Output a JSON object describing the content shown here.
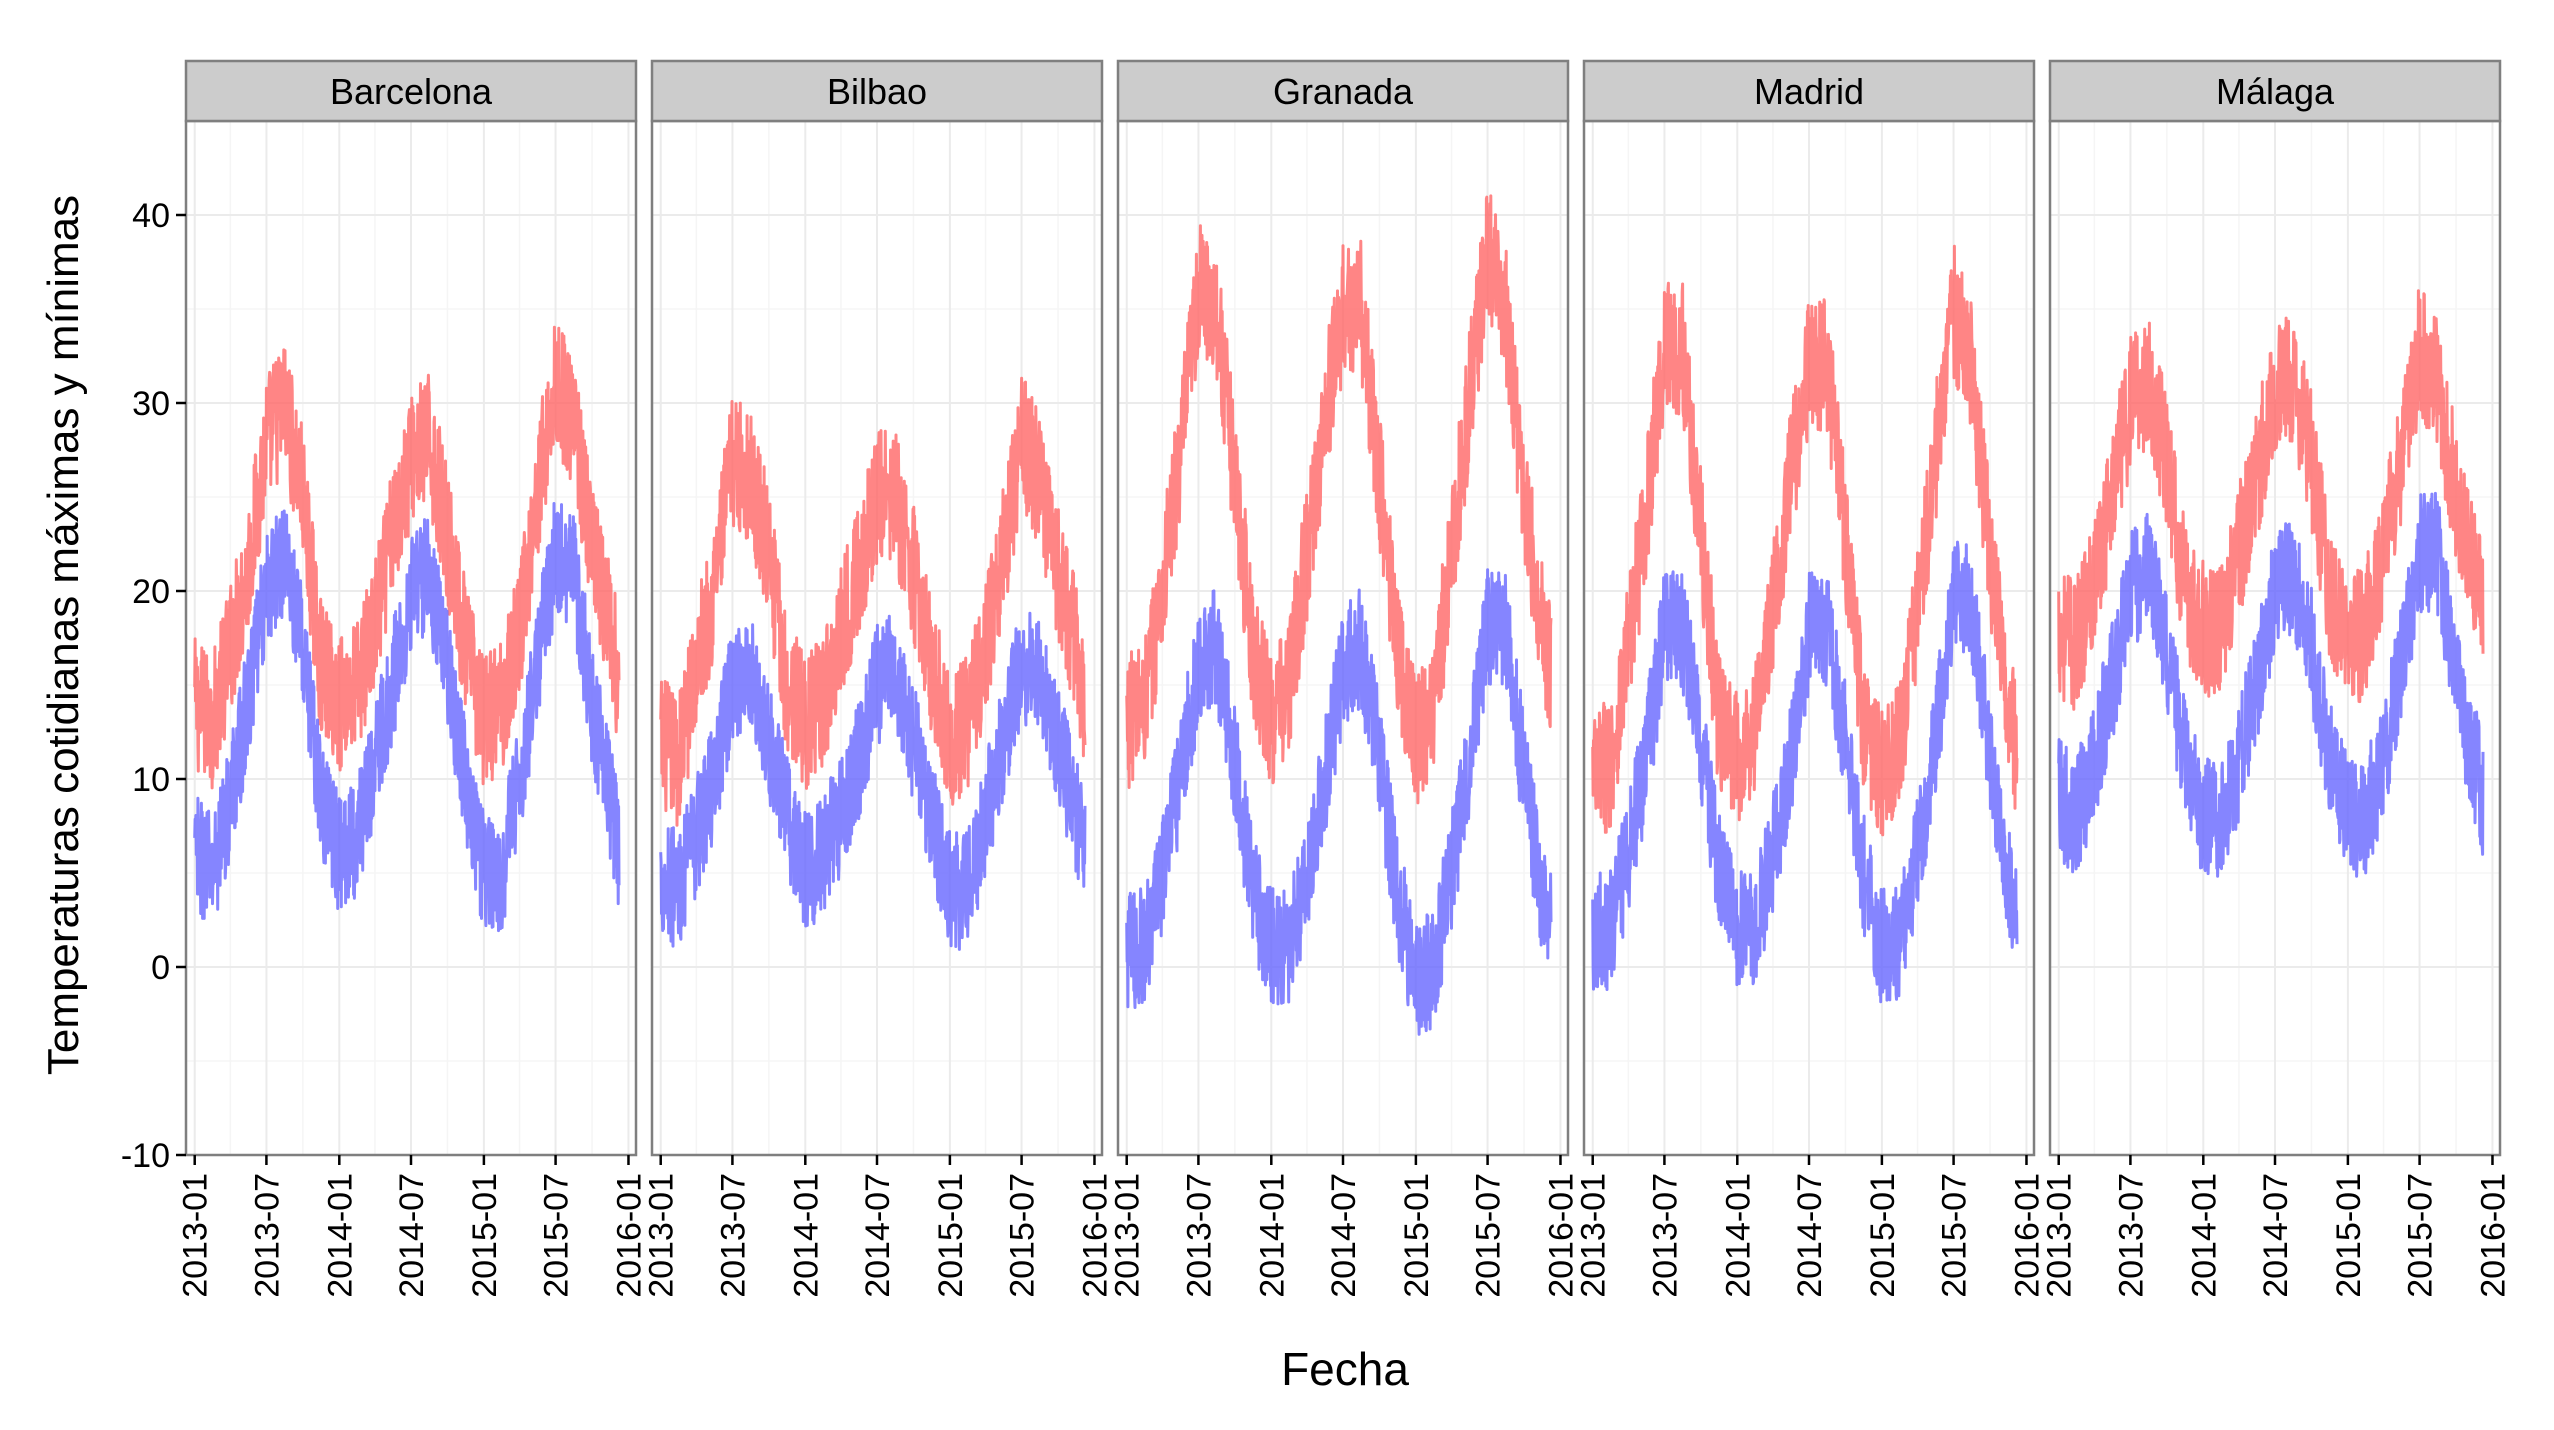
{
  "chart_data": {
    "type": "line",
    "xlabel": "Fecha",
    "ylabel": "Temperaturas cotidianas máximas y mínimas",
    "ylim": [
      -10,
      45
    ],
    "y_ticks": [
      -10,
      0,
      10,
      20,
      30,
      40
    ],
    "x_ticks": [
      "2013-01",
      "2013-07",
      "2014-01",
      "2014-07",
      "2015-01",
      "2015-07",
      "2016-01"
    ],
    "x_tick_dates": [
      "2013-01-01",
      "2013-07-01",
      "2014-01-01",
      "2014-07-01",
      "2015-01-01",
      "2015-07-01",
      "2016-01-01"
    ],
    "xlim": [
      "2012-12-10",
      "2016-01-20"
    ],
    "grid": true,
    "legend": "none",
    "colors": {
      "max": "#FF6666",
      "min": "#6666FF",
      "strip_bg": "#CCCCCC",
      "panel_border": "#7F7F7F",
      "grid_major": "#EBEBEB",
      "grid_minor": "#F5F5F5"
    },
    "panels": [
      {
        "name": "Barcelona",
        "dates": [
          "2013-01-01",
          "2013-02-15",
          "2013-04-01",
          "2013-05-15",
          "2013-07-01",
          "2013-08-15",
          "2013-10-01",
          "2013-11-15",
          "2014-01-01",
          "2014-02-15",
          "2014-04-01",
          "2014-05-15",
          "2014-07-01",
          "2014-08-15",
          "2014-10-01",
          "2014-11-15",
          "2015-01-01",
          "2015-02-15",
          "2015-04-01",
          "2015-05-15",
          "2015-07-01",
          "2015-08-15",
          "2015-10-01",
          "2015-11-15",
          "2015-12-08"
        ],
        "series": [
          {
            "name": "max",
            "values": [
              14,
              13,
              17,
              21,
              28,
              30,
              25,
              16,
              14,
              15,
              18,
              23,
              27,
              28,
              23,
              17,
              13,
              14,
              18,
              25,
              31,
              29,
              22,
              18,
              15
            ]
          },
          {
            "name": "min",
            "values": [
              6,
              5,
              9,
              14,
              20,
              22,
              17,
              9,
              6,
              7,
              11,
              15,
              20,
              21,
              16,
              10,
              5,
              5,
              10,
              16,
              22,
              21,
              14,
              9,
              6
            ]
          }
        ]
      },
      {
        "name": "Bilbao",
        "dates": [
          "2013-01-01",
          "2013-02-15",
          "2013-04-01",
          "2013-05-15",
          "2013-07-01",
          "2013-08-15",
          "2013-10-01",
          "2013-11-15",
          "2014-01-01",
          "2014-02-15",
          "2014-04-01",
          "2014-05-15",
          "2014-07-01",
          "2014-08-15",
          "2014-10-01",
          "2014-11-15",
          "2015-01-01",
          "2015-02-15",
          "2015-04-01",
          "2015-05-15",
          "2015-07-01",
          "2015-08-15",
          "2015-10-01",
          "2015-11-15",
          "2015-12-08"
        ],
        "series": [
          {
            "name": "max",
            "values": [
              12,
              11,
              16,
              20,
              27,
              26,
              22,
              15,
              13,
              14,
              18,
              21,
              25,
              25,
              21,
              16,
              12,
              13,
              17,
              22,
              28,
              26,
              21,
              17,
              14
            ]
          },
          {
            "name": "min",
            "values": [
              5,
              4,
              7,
              10,
              15,
              16,
              12,
              8,
              5,
              6,
              8,
              11,
              15,
              16,
              12,
              8,
              4,
              4,
              8,
              12,
              16,
              16,
              12,
              8,
              6
            ]
          }
        ]
      },
      {
        "name": "Granada",
        "dates": [
          "2013-01-01",
          "2013-02-15",
          "2013-04-01",
          "2013-05-15",
          "2013-07-01",
          "2013-08-15",
          "2013-10-01",
          "2013-11-15",
          "2014-01-01",
          "2014-02-15",
          "2014-04-01",
          "2014-05-15",
          "2014-07-01",
          "2014-08-15",
          "2014-10-01",
          "2014-11-15",
          "2015-01-01",
          "2015-02-15",
          "2015-04-01",
          "2015-05-15",
          "2015-07-01",
          "2015-08-15",
          "2015-10-01",
          "2015-11-15",
          "2015-12-08"
        ],
        "series": [
          {
            "name": "max",
            "values": [
              13,
              14,
              20,
              27,
              36,
              35,
              26,
              17,
              13,
              15,
              22,
              29,
              35,
              35,
              26,
              17,
              12,
              14,
              22,
              30,
              38,
              35,
              25,
              18,
              16
            ]
          },
          {
            "name": "min",
            "values": [
              1,
              1,
              5,
              10,
              16,
              17,
              11,
              4,
              1,
              1,
              5,
              10,
              16,
              17,
              11,
              4,
              -1,
              0,
              5,
              11,
              18,
              18,
              10,
              4,
              2
            ]
          }
        ]
      },
      {
        "name": "Madrid",
        "dates": [
          "2013-01-01",
          "2013-02-15",
          "2013-04-01",
          "2013-05-15",
          "2013-07-01",
          "2013-08-15",
          "2013-10-01",
          "2013-11-15",
          "2014-01-01",
          "2014-02-15",
          "2014-04-01",
          "2014-05-15",
          "2014-07-01",
          "2014-08-15",
          "2014-10-01",
          "2014-11-15",
          "2015-01-01",
          "2015-02-15",
          "2015-04-01",
          "2015-05-15",
          "2015-07-01",
          "2015-08-15",
          "2015-10-01",
          "2015-11-15",
          "2015-12-08"
        ],
        "series": [
          {
            "name": "max",
            "values": [
              10,
              11,
              17,
              24,
              33,
              33,
              23,
              13,
              11,
              13,
              19,
              26,
              32,
              32,
              23,
              13,
              10,
              12,
              19,
              27,
              35,
              32,
              22,
              14,
              11
            ]
          },
          {
            "name": "min",
            "values": [
              2,
              2,
              6,
              11,
              18,
              18,
              12,
              5,
              2,
              2,
              6,
              11,
              18,
              18,
              12,
              5,
              1,
              1,
              6,
              12,
              20,
              19,
              11,
              5,
              3
            ]
          }
        ]
      },
      {
        "name": "Málaga",
        "dates": [
          "2013-01-01",
          "2013-02-15",
          "2013-04-01",
          "2013-05-15",
          "2013-07-01",
          "2013-08-15",
          "2013-10-01",
          "2013-11-15",
          "2014-01-01",
          "2014-02-15",
          "2014-04-01",
          "2014-05-15",
          "2014-07-01",
          "2014-08-15",
          "2014-10-01",
          "2014-11-15",
          "2015-01-01",
          "2015-02-15",
          "2015-04-01",
          "2015-05-15",
          "2015-07-01",
          "2015-08-15",
          "2015-10-01",
          "2015-11-15",
          "2015-12-08"
        ],
        "series": [
          {
            "name": "max",
            "values": [
              18,
              17,
              21,
              25,
              30,
              31,
              27,
              20,
              18,
              18,
              22,
              26,
              31,
              31,
              27,
              20,
              17,
              18,
              22,
              27,
              33,
              31,
              25,
              21,
              19
            ]
          },
          {
            "name": "min",
            "values": [
              9,
              8,
              11,
              15,
              20,
              21,
              17,
              11,
              8,
              8,
              11,
              15,
              20,
              21,
              17,
              11,
              8,
              8,
              11,
              16,
              22,
              22,
              15,
              11,
              9
            ]
          }
        ]
      }
    ]
  }
}
